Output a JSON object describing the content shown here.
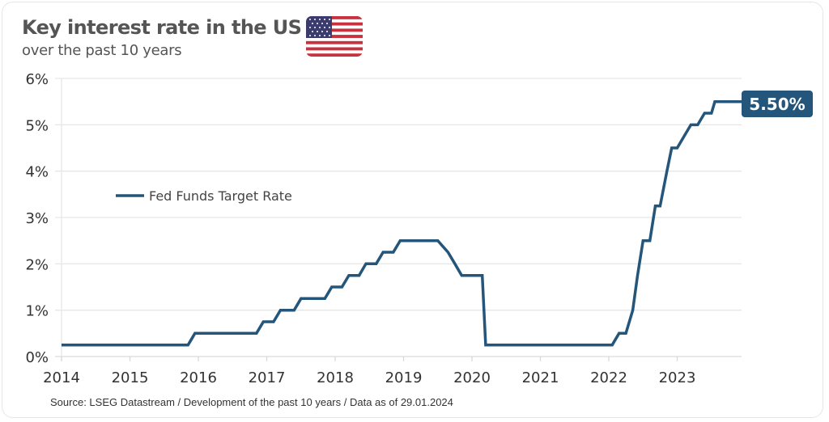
{
  "header": {
    "title": "Key interest rate in the US",
    "subtitle": "over the past 10 years",
    "flag_icon": "us-flag-icon"
  },
  "footer": {
    "source": "Source: LSEG Datastream / Development of the past 10 years / Data as of 29.01.2024"
  },
  "colors": {
    "line": "#24557a",
    "grid": "#e6e6e6",
    "label_bg": "#24557a"
  },
  "chart_data": {
    "type": "line",
    "title": "Key interest rate in the US",
    "subtitle": "over the past 10 years",
    "xlabel": "",
    "ylabel": "",
    "xlim": [
      2014,
      2024.0
    ],
    "ylim": [
      0,
      6
    ],
    "grid": true,
    "yticks": [
      0,
      1,
      2,
      3,
      4,
      5,
      6
    ],
    "ytick_labels": [
      "0%",
      "1%",
      "2%",
      "3%",
      "4%",
      "5%",
      "6%"
    ],
    "xticks": [
      2014,
      2015,
      2016,
      2017,
      2018,
      2019,
      2020,
      2021,
      2022,
      2023
    ],
    "xtick_labels": [
      "2014",
      "2015",
      "2016",
      "2017",
      "2018",
      "2019",
      "2020",
      "2021",
      "2022",
      "2023"
    ],
    "legend": {
      "position": "center-left",
      "entries": [
        "Fed Funds Target Rate"
      ]
    },
    "end_label": "5.50%",
    "series": [
      {
        "name": "Fed Funds Target Rate",
        "x": [
          2014.0,
          2015.85,
          2015.95,
          2016.85,
          2016.95,
          2017.1,
          2017.2,
          2017.4,
          2017.5,
          2017.85,
          2017.95,
          2018.1,
          2018.2,
          2018.35,
          2018.45,
          2018.6,
          2018.7,
          2018.85,
          2018.95,
          2019.5,
          2019.65,
          2019.75,
          2019.85,
          2020.15,
          2020.2,
          2022.05,
          2022.15,
          2022.25,
          2022.35,
          2022.42,
          2022.5,
          2022.6,
          2022.68,
          2022.75,
          2022.85,
          2022.92,
          2023.0,
          2023.1,
          2023.2,
          2023.3,
          2023.4,
          2023.5,
          2023.55,
          2023.92
        ],
        "values": [
          0.25,
          0.25,
          0.5,
          0.5,
          0.75,
          0.75,
          1.0,
          1.0,
          1.25,
          1.25,
          1.5,
          1.5,
          1.75,
          1.75,
          2.0,
          2.0,
          2.25,
          2.25,
          2.5,
          2.5,
          2.25,
          2.0,
          1.75,
          1.75,
          0.25,
          0.25,
          0.5,
          0.5,
          1.0,
          1.75,
          2.5,
          2.5,
          3.25,
          3.25,
          4.0,
          4.5,
          4.5,
          4.75,
          5.0,
          5.0,
          5.25,
          5.25,
          5.5,
          5.5
        ]
      }
    ]
  }
}
